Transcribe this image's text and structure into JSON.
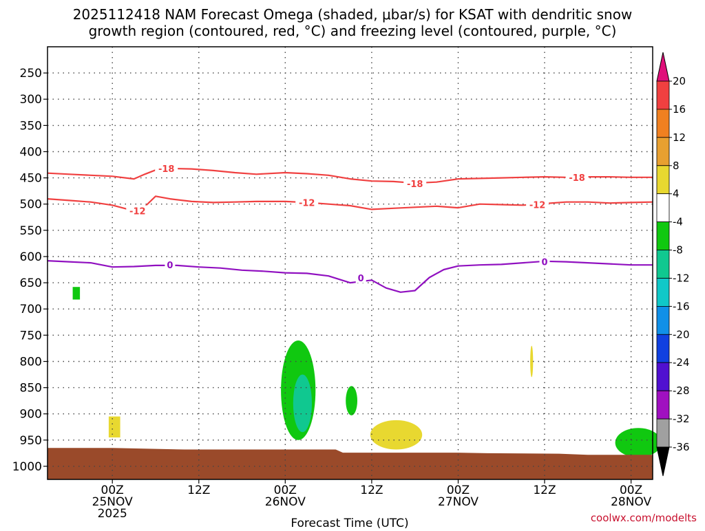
{
  "chart_data": {
    "type": "heatmap",
    "title_line1": "2025112418 NAM Forecast Omega (shaded, μbar/s) for KSAT with dendritic snow",
    "title_line2": "growth region (contoured, red, °C) and freezing level (contoured, purple, °C)",
    "xlabel": "Forecast Time (UTC)",
    "credit": "coolwx.com/modelts",
    "x_range_hours": [
      -9,
      75
    ],
    "y_range_hpa": [
      200,
      1025
    ],
    "x_ticks": [
      {
        "hour": 0,
        "l1": "00Z",
        "l2": "25NOV",
        "l3": "2025"
      },
      {
        "hour": 12,
        "l1": "12Z",
        "l2": "",
        "l3": ""
      },
      {
        "hour": 24,
        "l1": "00Z",
        "l2": "26NOV",
        "l3": ""
      },
      {
        "hour": 36,
        "l1": "12Z",
        "l2": "",
        "l3": ""
      },
      {
        "hour": 48,
        "l1": "00Z",
        "l2": "27NOV",
        "l3": ""
      },
      {
        "hour": 60,
        "l1": "12Z",
        "l2": "",
        "l3": ""
      },
      {
        "hour": 72,
        "l1": "00Z",
        "l2": "28NOV",
        "l3": ""
      }
    ],
    "y_ticks": [
      250,
      300,
      350,
      400,
      450,
      500,
      550,
      600,
      650,
      700,
      750,
      800,
      850,
      900,
      950,
      1000
    ],
    "colorbar": {
      "labels": [
        "20",
        "16",
        "12",
        "8",
        "4",
        "-4",
        "-8",
        "-12",
        "-16",
        "-20",
        "-24",
        "-28",
        "-32",
        "-36"
      ],
      "bins": [
        {
          "from": 16,
          "to": 20,
          "color": "#f04040"
        },
        {
          "from": 12,
          "to": 16,
          "color": "#f08020"
        },
        {
          "from": 8,
          "to": 12,
          "color": "#e8a030"
        },
        {
          "from": 4,
          "to": 8,
          "color": "#e8d830"
        },
        {
          "from": -4,
          "to": 4,
          "color": "#ffffff"
        },
        {
          "from": -8,
          "to": -4,
          "color": "#10c810"
        },
        {
          "from": -12,
          "to": -8,
          "color": "#10c890"
        },
        {
          "from": -16,
          "to": -12,
          "color": "#10c8c8"
        },
        {
          "from": -20,
          "to": -16,
          "color": "#1090e8"
        },
        {
          "from": -24,
          "to": -20,
          "color": "#1040e0"
        },
        {
          "from": -28,
          "to": -24,
          "color": "#5010d0"
        },
        {
          "from": -32,
          "to": -28,
          "color": "#a010c0"
        },
        {
          "from": -36,
          "to": -32,
          "color": "#a0a0a0"
        }
      ],
      "top_arrow_color": "#e0107a",
      "bottom_arrow_color": "#000000"
    },
    "contours": [
      {
        "name": "-18",
        "color": "#f04040",
        "points": [
          [
            -9,
            441
          ],
          [
            -6,
            443
          ],
          [
            -3,
            445
          ],
          [
            0,
            447
          ],
          [
            3,
            452
          ],
          [
            4.5,
            443
          ],
          [
            6,
            435
          ],
          [
            8,
            432
          ],
          [
            11,
            433
          ],
          [
            14,
            436
          ],
          [
            17,
            440
          ],
          [
            20,
            443
          ],
          [
            24,
            440
          ],
          [
            27,
            442
          ],
          [
            30,
            445
          ],
          [
            33,
            452
          ],
          [
            36,
            456
          ],
          [
            39,
            457
          ],
          [
            42,
            460
          ],
          [
            45,
            458
          ],
          [
            48,
            452
          ],
          [
            51,
            451
          ],
          [
            54,
            450
          ],
          [
            57,
            449
          ],
          [
            60,
            448
          ],
          [
            63,
            449
          ],
          [
            66,
            448
          ],
          [
            69,
            448
          ],
          [
            72,
            449
          ],
          [
            75,
            449
          ]
        ],
        "labels": [
          [
            7.5,
            432
          ],
          [
            42,
            461
          ],
          [
            64.5,
            449
          ]
        ]
      },
      {
        "name": "-12",
        "color": "#f04040",
        "points": [
          [
            -9,
            490
          ],
          [
            -6,
            493
          ],
          [
            -3,
            496
          ],
          [
            0,
            502
          ],
          [
            3,
            513
          ],
          [
            4.5,
            505
          ],
          [
            6,
            485
          ],
          [
            8,
            490
          ],
          [
            11,
            495
          ],
          [
            14,
            497
          ],
          [
            17,
            496
          ],
          [
            20,
            495
          ],
          [
            24,
            495
          ],
          [
            27,
            497
          ],
          [
            30,
            500
          ],
          [
            33,
            503
          ],
          [
            36,
            510
          ],
          [
            39,
            508
          ],
          [
            42,
            506
          ],
          [
            45,
            504
          ],
          [
            48,
            507
          ],
          [
            51,
            500
          ],
          [
            54,
            501
          ],
          [
            57,
            502
          ],
          [
            60,
            499
          ],
          [
            63,
            496
          ],
          [
            66,
            496
          ],
          [
            69,
            498
          ],
          [
            72,
            497
          ],
          [
            75,
            496
          ]
        ],
        "labels": [
          [
            3.5,
            513
          ],
          [
            27,
            497
          ],
          [
            59,
            501
          ]
        ]
      },
      {
        "name": "0",
        "color": "#9010c0",
        "points": [
          [
            -9,
            608
          ],
          [
            -6,
            610
          ],
          [
            -3,
            612
          ],
          [
            0,
            620
          ],
          [
            3,
            619
          ],
          [
            6,
            617
          ],
          [
            9,
            617
          ],
          [
            12,
            620
          ],
          [
            15,
            622
          ],
          [
            18,
            626
          ],
          [
            21,
            628
          ],
          [
            24,
            631
          ],
          [
            27,
            632
          ],
          [
            30,
            637
          ],
          [
            33,
            650
          ],
          [
            36,
            645
          ],
          [
            38,
            660
          ],
          [
            40,
            668
          ],
          [
            42,
            665
          ],
          [
            44,
            640
          ],
          [
            46,
            625
          ],
          [
            48,
            618
          ],
          [
            51,
            616
          ],
          [
            54,
            615
          ],
          [
            57,
            612
          ],
          [
            60,
            609
          ],
          [
            63,
            610
          ],
          [
            66,
            612
          ],
          [
            69,
            614
          ],
          [
            72,
            616
          ],
          [
            75,
            616
          ]
        ],
        "labels": [
          [
            8,
            616
          ],
          [
            34.5,
            641
          ],
          [
            60,
            610
          ]
        ]
      }
    ],
    "shaded_regions": [
      {
        "label": "green",
        "color": "#10c810",
        "center": [
          -5,
          670
        ],
        "radius_h": 0.5,
        "radius_p": 12,
        "shape": "rect"
      },
      {
        "label": "yellow",
        "color": "#e8d830",
        "center": [
          0.3,
          925
        ],
        "radius_h": 0.8,
        "radius_p": 20,
        "shape": "rect"
      },
      {
        "label": "green",
        "color": "#10c810",
        "center": [
          25.8,
          855
        ],
        "radius_h": 2.4,
        "radius_p": 95,
        "shape": "blob"
      },
      {
        "label": "teal",
        "color": "#10c890",
        "center": [
          26.4,
          880
        ],
        "radius_h": 1.3,
        "radius_p": 55,
        "shape": "blob"
      },
      {
        "label": "green",
        "color": "#10c810",
        "center": [
          33.2,
          875
        ],
        "radius_h": 0.8,
        "radius_p": 28,
        "shape": "blob"
      },
      {
        "label": "yellow",
        "color": "#e8d830",
        "center": [
          39.4,
          940
        ],
        "radius_h": 3.6,
        "radius_p": 28,
        "shape": "blob"
      },
      {
        "label": "yellow",
        "color": "#e8d830",
        "center": [
          58.2,
          800
        ],
        "radius_h": 0.2,
        "radius_p": 30,
        "shape": "blob"
      },
      {
        "label": "green",
        "color": "#10c810",
        "center": [
          73,
          955
        ],
        "radius_h": 3.2,
        "radius_p": 28,
        "shape": "blob"
      }
    ],
    "terrain": {
      "color": "#9a4a2a",
      "points": [
        [
          -9,
          965
        ],
        [
          0,
          965
        ],
        [
          10,
          968
        ],
        [
          20,
          968
        ],
        [
          31,
          968
        ],
        [
          32,
          974
        ],
        [
          48,
          974
        ],
        [
          52,
          975
        ],
        [
          62,
          976
        ],
        [
          66,
          978
        ],
        [
          75,
          978
        ]
      ]
    }
  }
}
